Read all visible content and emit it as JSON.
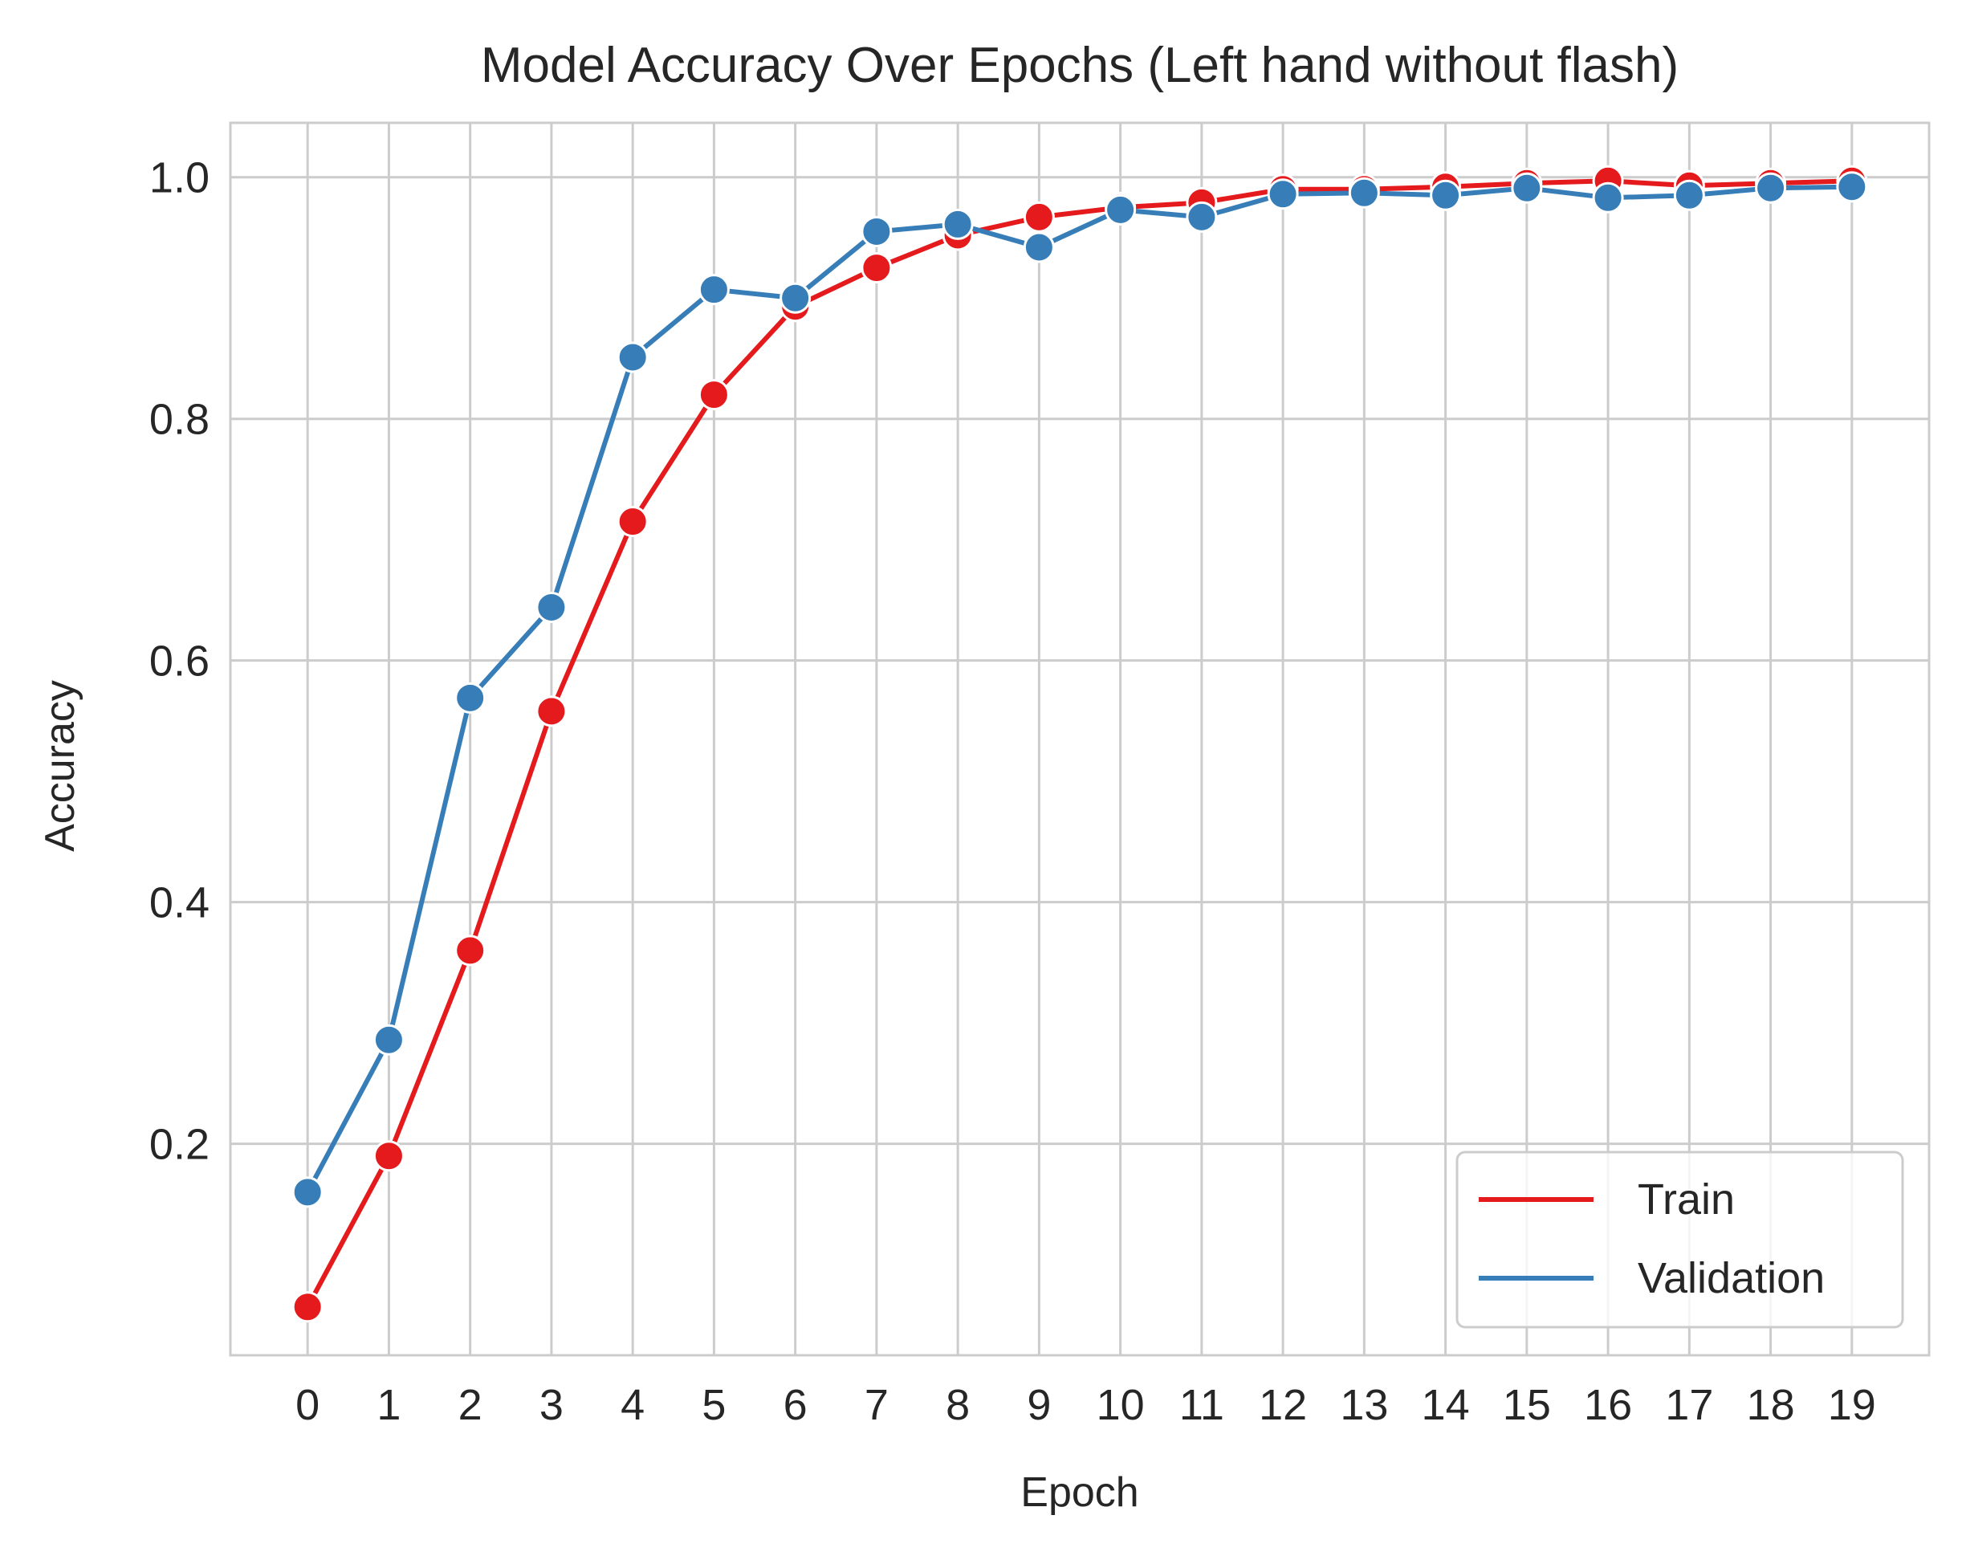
{
  "chart_data": {
    "type": "line",
    "title": "Model Accuracy Over Epochs (Left hand without flash)",
    "xlabel": "Epoch",
    "ylabel": "Accuracy",
    "x": [
      0,
      1,
      2,
      3,
      4,
      5,
      6,
      7,
      8,
      9,
      10,
      11,
      12,
      13,
      14,
      15,
      16,
      17,
      18,
      19
    ],
    "x_ticks": [
      "0",
      "1",
      "2",
      "3",
      "4",
      "5",
      "6",
      "7",
      "8",
      "9",
      "10",
      "11",
      "12",
      "13",
      "14",
      "15",
      "16",
      "17",
      "18",
      "19"
    ],
    "y_ticks": [
      "0.2",
      "0.4",
      "0.6",
      "0.8",
      "1.0"
    ],
    "y_tick_values": [
      0.2,
      0.4,
      0.6,
      0.8,
      1.0
    ],
    "xlim": [
      -0.95,
      19.95
    ],
    "ylim": [
      0.025,
      1.045
    ],
    "grid": true,
    "legend_position": "lower-right",
    "series": [
      {
        "name": "Train",
        "color": "#e41a1c",
        "values": [
          0.065,
          0.19,
          0.36,
          0.558,
          0.715,
          0.82,
          0.893,
          0.925,
          0.952,
          0.967,
          0.975,
          0.979,
          0.99,
          0.99,
          0.992,
          0.995,
          0.997,
          0.993,
          0.995,
          0.997
        ]
      },
      {
        "name": "Validation",
        "color": "#377eb8",
        "values": [
          0.16,
          0.286,
          0.569,
          0.644,
          0.851,
          0.907,
          0.9,
          0.955,
          0.961,
          0.942,
          0.973,
          0.967,
          0.986,
          0.987,
          0.985,
          0.991,
          0.983,
          0.985,
          0.991,
          0.992
        ]
      }
    ]
  }
}
